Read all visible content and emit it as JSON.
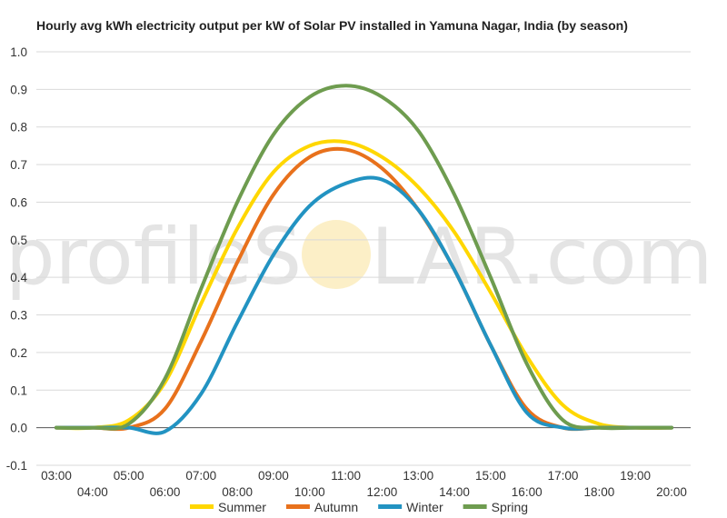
{
  "chart_data": {
    "type": "line",
    "title": "Hourly avg kWh electricity output per kW of Solar PV installed in Yamuna Nagar, India (by season)",
    "xlabel": "",
    "ylabel": "",
    "x": [
      "03:00",
      "04:00",
      "05:00",
      "06:00",
      "07:00",
      "08:00",
      "09:00",
      "10:00",
      "11:00",
      "12:00",
      "13:00",
      "14:00",
      "15:00",
      "16:00",
      "17:00",
      "18:00",
      "19:00",
      "20:00"
    ],
    "ylim": [
      -0.1,
      1.0
    ],
    "yticks": [
      -0.1,
      0.0,
      0.1,
      0.2,
      0.3,
      0.4,
      0.5,
      0.6,
      0.7,
      0.8,
      0.9,
      1.0
    ],
    "ytick_labels": [
      "-0.1",
      "0.0",
      "0.1",
      "0.2",
      "0.3",
      "0.4",
      "0.5",
      "0.6",
      "0.7",
      "0.8",
      "0.9",
      "1.0"
    ],
    "grid": true,
    "legend": "bottom",
    "series": [
      {
        "name": "Summer",
        "color": "#ffd700",
        "values": [
          0,
          0,
          0.02,
          0.12,
          0.33,
          0.53,
          0.68,
          0.75,
          0.76,
          0.72,
          0.64,
          0.52,
          0.36,
          0.19,
          0.06,
          0.01,
          0,
          0
        ]
      },
      {
        "name": "Autumn",
        "color": "#e8711c",
        "values": [
          0,
          0,
          0,
          0.05,
          0.23,
          0.44,
          0.62,
          0.72,
          0.74,
          0.69,
          0.58,
          0.42,
          0.22,
          0.05,
          0,
          0,
          0,
          0
        ]
      },
      {
        "name": "Winter",
        "color": "#2293c2",
        "values": [
          0,
          0,
          0,
          -0.01,
          0.09,
          0.28,
          0.46,
          0.59,
          0.65,
          0.66,
          0.58,
          0.42,
          0.22,
          0.04,
          0,
          0,
          0,
          0
        ]
      },
      {
        "name": "Spring",
        "color": "#6e9c4f",
        "values": [
          0,
          0,
          0.01,
          0.13,
          0.37,
          0.6,
          0.78,
          0.88,
          0.91,
          0.88,
          0.79,
          0.62,
          0.4,
          0.17,
          0.02,
          0,
          0,
          0
        ]
      }
    ],
    "watermark": {
      "text_left": "profileS",
      "text_right": "LAR.com",
      "sun_color": "#f5d25e"
    }
  }
}
